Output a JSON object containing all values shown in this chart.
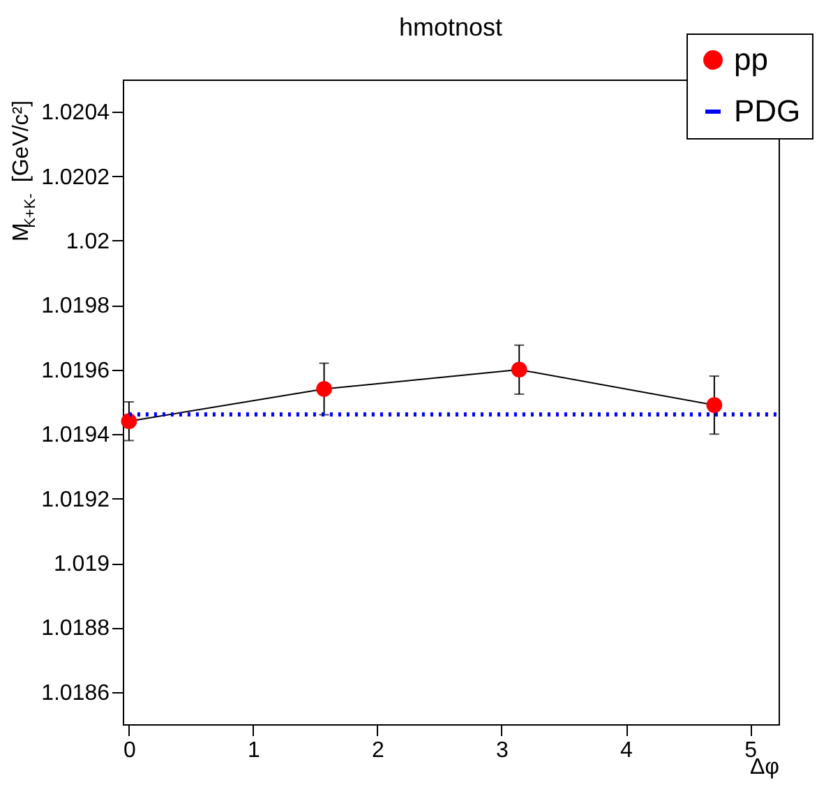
{
  "chart_data": {
    "type": "line",
    "title": "hmotnost",
    "xlabel": "Δφ",
    "ylabel": "M$_{K+K-}$ [GeV/c²]",
    "xlim": [
      -0.05,
      5.23
    ],
    "ylim": [
      1.0185,
      1.0205
    ],
    "xticks": [
      0,
      1,
      2,
      3,
      4,
      5
    ],
    "yticks": [
      1.0186,
      1.0188,
      1.019,
      1.0192,
      1.0194,
      1.0196,
      1.0198,
      1.02,
      1.0202,
      1.0204
    ],
    "grid": false,
    "legend": "top right",
    "series": [
      {
        "name": "pp",
        "color": "#ff0000",
        "x": [
          0,
          1.5708,
          3.1416,
          4.7124
        ],
        "values": [
          1.01944,
          1.01954,
          1.0196,
          1.01949
        ],
        "errors": [
          6e-05,
          8e-05,
          7.6e-05,
          9e-05
        ],
        "marker": "circle",
        "line_style": "solid"
      },
      {
        "name": "PDG",
        "color": "#0000ff",
        "x": [
          0,
          5.23
        ],
        "values": [
          1.019461,
          1.019461
        ],
        "marker": "none",
        "line_style": "dotted"
      }
    ]
  }
}
